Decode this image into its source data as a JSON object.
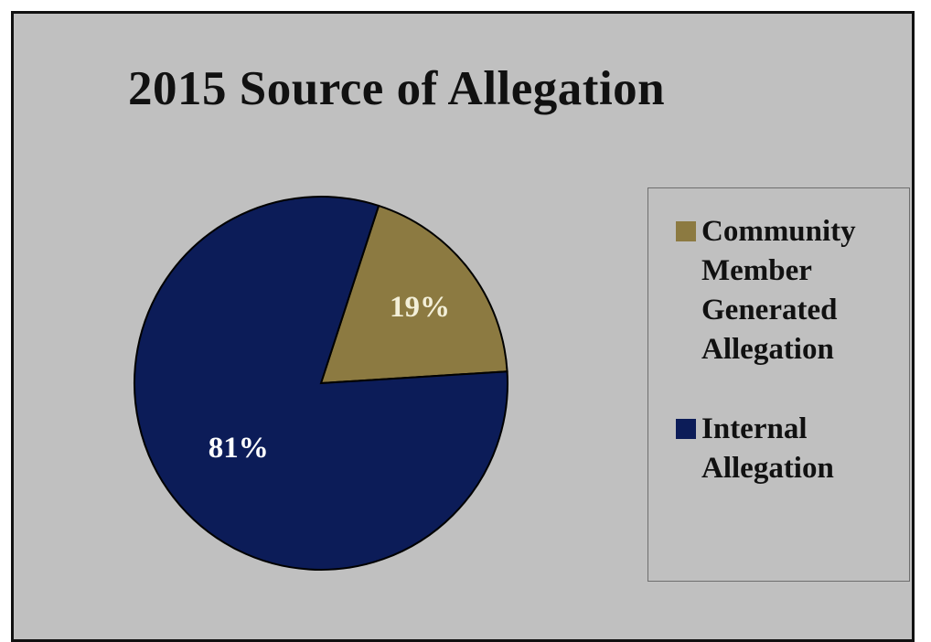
{
  "chart_data": {
    "type": "pie",
    "title": "2015 Source of Allegation",
    "slices": [
      {
        "label": "Community Member Generated Allegation",
        "value": 19,
        "data_label": "19%",
        "color": "#8c7a41",
        "label_color": "#f3efd8"
      },
      {
        "label": "Internal Allegation",
        "value": 81,
        "data_label": "81%",
        "color": "#0c1c58",
        "label_color": "#ffffff"
      }
    ],
    "legend_position": "right",
    "slice_border_color": "#000000"
  },
  "legend_entries": [
    {
      "text": "Community\nMember\nGenerated\nAllegation",
      "color": "#8c7a41"
    },
    {
      "text": "Internal\nAllegation",
      "color": "#0c1c58"
    }
  ]
}
